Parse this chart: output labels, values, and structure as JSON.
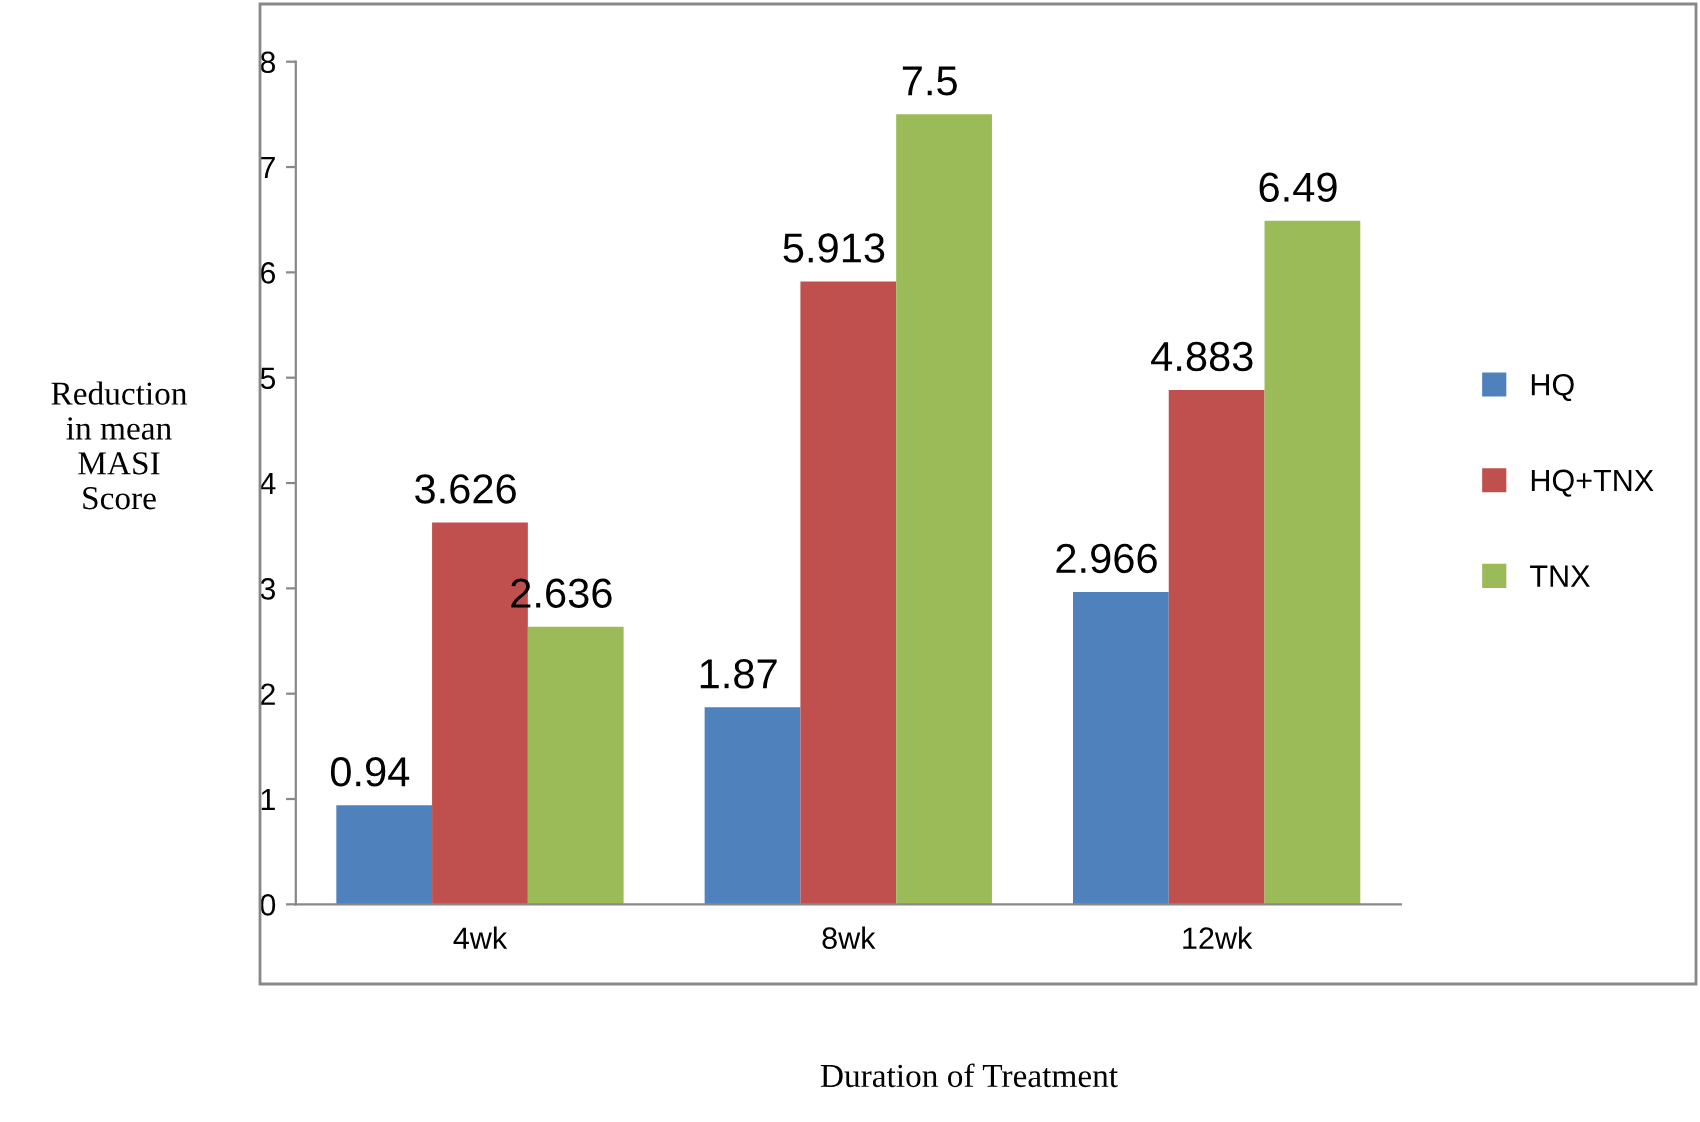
{
  "chart_data": {
    "type": "bar",
    "xlabel": "Duration of Treatment",
    "ylabel": "Reduction\nin mean\nMASI\nScore",
    "categories": [
      "4wk",
      "8wk",
      "12wk"
    ],
    "series": [
      {
        "name": "HQ",
        "color": "#4f81bd",
        "values": [
          0.94,
          1.87,
          2.966
        ]
      },
      {
        "name": "HQ+TNX",
        "color": "#c0504d",
        "values": [
          3.626,
          5.913,
          4.883
        ]
      },
      {
        "name": "TNX",
        "color": "#9bbb59",
        "values": [
          2.636,
          7.5,
          6.49
        ]
      }
    ],
    "ylim": [
      0,
      8
    ],
    "yticks": [
      0,
      1,
      2,
      3,
      4,
      5,
      6,
      7,
      8
    ],
    "data_labels": true,
    "legend": "right",
    "grid": false
  }
}
